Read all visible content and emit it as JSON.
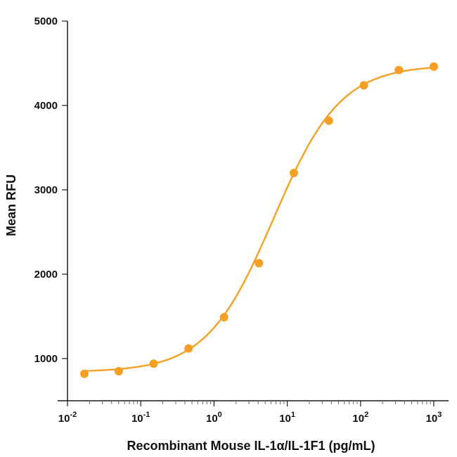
{
  "chart_data": {
    "type": "scatter",
    "title": "",
    "xlabel": "Recombinant Mouse IL-1α/IL-1F1 (pg/mL)",
    "ylabel": "Mean RFU",
    "x_scale": "log",
    "xlim": [
      0.01,
      1000
    ],
    "ylim": [
      500,
      5000
    ],
    "x_ticks": [
      {
        "value": 0.01,
        "base": "10",
        "exp": "-2"
      },
      {
        "value": 0.1,
        "base": "10",
        "exp": "-1"
      },
      {
        "value": 1,
        "base": "10",
        "exp": "0"
      },
      {
        "value": 10,
        "base": "10",
        "exp": "1"
      },
      {
        "value": 100,
        "base": "10",
        "exp": "2"
      },
      {
        "value": 1000,
        "base": "10",
        "exp": "3"
      }
    ],
    "y_ticks": [
      {
        "value": 1000,
        "label": "1000"
      },
      {
        "value": 2000,
        "label": "2000"
      },
      {
        "value": 3000,
        "label": "3000"
      },
      {
        "value": 4000,
        "label": "4000"
      },
      {
        "value": 5000,
        "label": "5000"
      }
    ],
    "color": "#F5A024",
    "grid": false,
    "legend": "none",
    "series": [
      {
        "points": [
          {
            "x": 0.017,
            "y": 820
          },
          {
            "x": 0.05,
            "y": 850
          },
          {
            "x": 0.15,
            "y": 940
          },
          {
            "x": 0.45,
            "y": 1120
          },
          {
            "x": 1.37,
            "y": 1490
          },
          {
            "x": 4.1,
            "y": 2130
          },
          {
            "x": 12.3,
            "y": 3200
          },
          {
            "x": 37,
            "y": 3820
          },
          {
            "x": 111,
            "y": 4240
          },
          {
            "x": 333,
            "y": 4420
          },
          {
            "x": 1000,
            "y": 4460
          }
        ],
        "fit_curve": {
          "model": "4PL",
          "bottom": 840,
          "top": 4480,
          "ec50": 6.5,
          "hill": 0.95
        }
      }
    ]
  }
}
